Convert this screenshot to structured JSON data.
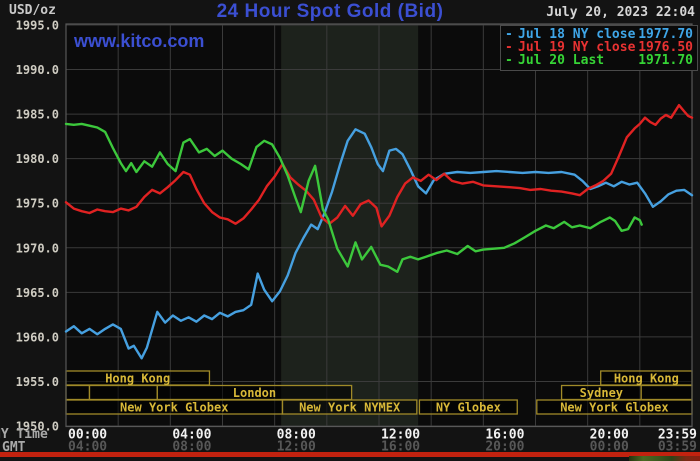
{
  "header": {
    "units_label": "USD/oz",
    "title": "24 Hour Spot Gold (Bid)",
    "watermark": "www.kitco.com",
    "timestamp": "July 20, 2023 22:04"
  },
  "legend": {
    "items": [
      {
        "marker": "-",
        "label": "Jul 18 NY close",
        "value": "1977.70",
        "color": "#3fa6e8"
      },
      {
        "marker": "-",
        "label": "Jul 19 NY close",
        "value": "1976.50",
        "color": "#e83232"
      },
      {
        "marker": "-",
        "label": "Jul 20 Last",
        "value": "1971.70",
        "color": "#36d436"
      }
    ]
  },
  "axis_headers": {
    "x_row1": "NY Time",
    "x_row2": "GMT"
  },
  "colors": {
    "plot_bg": "#0b0b0b",
    "outer_bg": "#131313",
    "grid": "#3b3b3b",
    "border": "#585858",
    "nymex_band": "#1d221c",
    "y_tick_text": "#cfccc2",
    "x_tick_text": "#f2f2f2",
    "gmt_tick_text": "#575757",
    "session_border": "#a08a28",
    "session_text": "#d8b838",
    "title_blue": "#3b4fd2",
    "bottom_strip": "#c2220f"
  },
  "chart_data": {
    "type": "line",
    "title": "24 Hour Spot Gold (Bid)",
    "ylabel": "USD/oz",
    "ylim": [
      1950,
      1995
    ],
    "xlim_hours": [
      0,
      24
    ],
    "grid": {
      "x_step_hours": 2,
      "y_step": 5
    },
    "y_ticks": [
      "1995.0",
      "1990.0",
      "1985.0",
      "1980.0",
      "1975.0",
      "1970.0",
      "1965.0",
      "1960.0",
      "1955.0",
      "1950.0"
    ],
    "x_ticks": {
      "hours": [
        0,
        4,
        8,
        12,
        16,
        20,
        23.983
      ],
      "ny_time": [
        "00:00",
        "04:00",
        "08:00",
        "12:00",
        "16:00",
        "20:00",
        "23:59"
      ],
      "gmt": [
        "04:00",
        "08:00",
        "12:00",
        "16:00",
        "20:00",
        "00:00",
        "03:59"
      ]
    },
    "nymex_highlight_hours": [
      8.25,
      13.5
    ],
    "sessions": [
      {
        "row": 0,
        "start": 0,
        "end": 5.5,
        "label": "Hong Kong"
      },
      {
        "row": 0,
        "start": 20.5,
        "end": 24,
        "label": "Hong Kong"
      },
      {
        "row": 1,
        "start": 0,
        "end": 0.9,
        "label": ""
      },
      {
        "row": 1,
        "start": 0.9,
        "end": 3.5,
        "label": ""
      },
      {
        "row": 1,
        "start": 3.5,
        "end": 10.95,
        "label": "London"
      },
      {
        "row": 1,
        "start": 19.0,
        "end": 22.05,
        "label": "Sydney"
      },
      {
        "row": 1,
        "start": 22.05,
        "end": 24,
        "label": ""
      },
      {
        "row": 2,
        "start": 0,
        "end": 8.3,
        "label": "New York Globex"
      },
      {
        "row": 2,
        "start": 8.3,
        "end": 13.45,
        "label": "New York NYMEX"
      },
      {
        "row": 2,
        "start": 13.55,
        "end": 17.3,
        "label": "NY Globex"
      },
      {
        "row": 2,
        "start": 18.05,
        "end": 24,
        "label": "New York Globex"
      }
    ],
    "series": [
      {
        "name": "Jul 18 NY close",
        "close": 1977.7,
        "color": "#46a0e0",
        "points": [
          [
            0,
            1960.6
          ],
          [
            0.3,
            1961.2
          ],
          [
            0.6,
            1960.4
          ],
          [
            0.9,
            1960.9
          ],
          [
            1.2,
            1960.3
          ],
          [
            1.5,
            1960.9
          ],
          [
            1.8,
            1961.4
          ],
          [
            2.1,
            1960.9
          ],
          [
            2.4,
            1958.7
          ],
          [
            2.6,
            1959.0
          ],
          [
            2.9,
            1957.6
          ],
          [
            3.1,
            1958.8
          ],
          [
            3.5,
            1962.8
          ],
          [
            3.8,
            1961.6
          ],
          [
            4.1,
            1962.4
          ],
          [
            4.4,
            1961.8
          ],
          [
            4.7,
            1962.2
          ],
          [
            5,
            1961.7
          ],
          [
            5.3,
            1962.4
          ],
          [
            5.6,
            1962.0
          ],
          [
            5.9,
            1962.7
          ],
          [
            6.2,
            1962.3
          ],
          [
            6.5,
            1962.8
          ],
          [
            6.8,
            1963.0
          ],
          [
            7.1,
            1963.6
          ],
          [
            7.35,
            1967.1
          ],
          [
            7.6,
            1965.3
          ],
          [
            7.9,
            1964.0
          ],
          [
            8.2,
            1965.1
          ],
          [
            8.5,
            1966.9
          ],
          [
            8.8,
            1969.4
          ],
          [
            9.1,
            1971.1
          ],
          [
            9.4,
            1972.6
          ],
          [
            9.65,
            1972.1
          ],
          [
            9.9,
            1973.8
          ],
          [
            10.2,
            1976.3
          ],
          [
            10.5,
            1979.3
          ],
          [
            10.8,
            1982.0
          ],
          [
            11.1,
            1983.3
          ],
          [
            11.45,
            1982.8
          ],
          [
            11.7,
            1981.3
          ],
          [
            11.95,
            1979.4
          ],
          [
            12.15,
            1978.6
          ],
          [
            12.4,
            1980.9
          ],
          [
            12.65,
            1981.1
          ],
          [
            12.9,
            1980.5
          ],
          [
            13.2,
            1978.8
          ],
          [
            13.5,
            1976.9
          ],
          [
            13.8,
            1976.1
          ],
          [
            14.1,
            1977.6
          ],
          [
            14.5,
            1978.3
          ],
          [
            15,
            1978.5
          ],
          [
            15.5,
            1978.4
          ],
          [
            16,
            1978.5
          ],
          [
            16.5,
            1978.6
          ],
          [
            17,
            1978.5
          ],
          [
            17.5,
            1978.4
          ],
          [
            18,
            1978.5
          ],
          [
            18.5,
            1978.4
          ],
          [
            19,
            1978.5
          ],
          [
            19.5,
            1978.2
          ],
          [
            19.8,
            1977.5
          ],
          [
            20.1,
            1976.6
          ],
          [
            20.4,
            1976.9
          ],
          [
            20.7,
            1977.3
          ],
          [
            21,
            1976.9
          ],
          [
            21.3,
            1977.4
          ],
          [
            21.6,
            1977.1
          ],
          [
            21.9,
            1977.3
          ],
          [
            22.2,
            1976.1
          ],
          [
            22.5,
            1974.6
          ],
          [
            22.8,
            1975.2
          ],
          [
            23.1,
            1976.0
          ],
          [
            23.4,
            1976.4
          ],
          [
            23.7,
            1976.5
          ],
          [
            24,
            1975.9
          ]
        ]
      },
      {
        "name": "Jul 19 NY close",
        "close": 1976.5,
        "color": "#e02222",
        "points": [
          [
            0,
            1975.1
          ],
          [
            0.3,
            1974.4
          ],
          [
            0.6,
            1974.1
          ],
          [
            0.9,
            1973.9
          ],
          [
            1.2,
            1974.3
          ],
          [
            1.5,
            1974.1
          ],
          [
            1.8,
            1974.0
          ],
          [
            2.1,
            1974.4
          ],
          [
            2.4,
            1974.2
          ],
          [
            2.7,
            1974.6
          ],
          [
            3,
            1975.7
          ],
          [
            3.3,
            1976.5
          ],
          [
            3.6,
            1976.1
          ],
          [
            3.9,
            1976.8
          ],
          [
            4.2,
            1977.6
          ],
          [
            4.5,
            1978.5
          ],
          [
            4.75,
            1978.2
          ],
          [
            5,
            1976.6
          ],
          [
            5.3,
            1975.0
          ],
          [
            5.6,
            1974.0
          ],
          [
            5.9,
            1973.4
          ],
          [
            6.2,
            1973.2
          ],
          [
            6.5,
            1972.7
          ],
          [
            6.8,
            1973.3
          ],
          [
            7.1,
            1974.3
          ],
          [
            7.4,
            1975.4
          ],
          [
            7.7,
            1976.9
          ],
          [
            8,
            1978.0
          ],
          [
            8.3,
            1979.4
          ],
          [
            8.6,
            1977.9
          ],
          [
            8.9,
            1977.1
          ],
          [
            9.2,
            1976.4
          ],
          [
            9.5,
            1975.4
          ],
          [
            9.8,
            1973.4
          ],
          [
            10.1,
            1972.7
          ],
          [
            10.4,
            1973.4
          ],
          [
            10.7,
            1974.7
          ],
          [
            11,
            1973.6
          ],
          [
            11.3,
            1974.9
          ],
          [
            11.6,
            1975.3
          ],
          [
            11.9,
            1974.5
          ],
          [
            12.1,
            1972.4
          ],
          [
            12.4,
            1973.6
          ],
          [
            12.7,
            1975.7
          ],
          [
            13,
            1977.2
          ],
          [
            13.3,
            1977.9
          ],
          [
            13.6,
            1977.5
          ],
          [
            13.9,
            1978.2
          ],
          [
            14.2,
            1977.6
          ],
          [
            14.5,
            1978.3
          ],
          [
            14.8,
            1977.5
          ],
          [
            15.2,
            1977.2
          ],
          [
            15.6,
            1977.4
          ],
          [
            16,
            1977.0
          ],
          [
            16.5,
            1976.9
          ],
          [
            17,
            1976.8
          ],
          [
            17.4,
            1976.7
          ],
          [
            17.8,
            1976.5
          ],
          [
            18.2,
            1976.6
          ],
          [
            18.6,
            1976.4
          ],
          [
            19,
            1976.3
          ],
          [
            19.4,
            1976.1
          ],
          [
            19.7,
            1975.9
          ],
          [
            20,
            1976.6
          ],
          [
            20.3,
            1977.0
          ],
          [
            20.6,
            1977.5
          ],
          [
            20.9,
            1978.3
          ],
          [
            21.2,
            1980.3
          ],
          [
            21.5,
            1982.4
          ],
          [
            21.8,
            1983.4
          ],
          [
            22,
            1983.9
          ],
          [
            22.2,
            1984.6
          ],
          [
            22.4,
            1984.1
          ],
          [
            22.6,
            1983.8
          ],
          [
            22.8,
            1984.5
          ],
          [
            23,
            1984.9
          ],
          [
            23.2,
            1984.6
          ],
          [
            23.5,
            1986.0
          ],
          [
            23.7,
            1985.3
          ],
          [
            23.85,
            1984.8
          ],
          [
            24,
            1984.6
          ]
        ]
      },
      {
        "name": "Jul 20 Last",
        "close": 1971.7,
        "color": "#3cc83c",
        "points": [
          [
            0,
            1983.9
          ],
          [
            0.3,
            1983.8
          ],
          [
            0.6,
            1983.9
          ],
          [
            0.9,
            1983.7
          ],
          [
            1.2,
            1983.5
          ],
          [
            1.5,
            1983.0
          ],
          [
            1.8,
            1981.2
          ],
          [
            2.1,
            1979.5
          ],
          [
            2.3,
            1978.6
          ],
          [
            2.5,
            1979.5
          ],
          [
            2.7,
            1978.5
          ],
          [
            3,
            1979.7
          ],
          [
            3.3,
            1979.1
          ],
          [
            3.6,
            1980.7
          ],
          [
            3.9,
            1979.4
          ],
          [
            4.2,
            1978.6
          ],
          [
            4.5,
            1981.8
          ],
          [
            4.75,
            1982.2
          ],
          [
            5.1,
            1980.7
          ],
          [
            5.4,
            1981.1
          ],
          [
            5.7,
            1980.3
          ],
          [
            6,
            1980.9
          ],
          [
            6.35,
            1980.0
          ],
          [
            6.7,
            1979.4
          ],
          [
            7,
            1978.8
          ],
          [
            7.3,
            1981.3
          ],
          [
            7.6,
            1982.0
          ],
          [
            7.9,
            1981.6
          ],
          [
            8.2,
            1980.1
          ],
          [
            8.5,
            1978.1
          ],
          [
            8.8,
            1975.6
          ],
          [
            9,
            1974.0
          ],
          [
            9.3,
            1977.5
          ],
          [
            9.55,
            1979.2
          ],
          [
            9.85,
            1974.3
          ],
          [
            10.05,
            1973.2
          ],
          [
            10.4,
            1969.9
          ],
          [
            10.8,
            1967.9
          ],
          [
            11.1,
            1970.6
          ],
          [
            11.35,
            1968.7
          ],
          [
            11.7,
            1970.1
          ],
          [
            12.05,
            1968.1
          ],
          [
            12.35,
            1967.9
          ],
          [
            12.7,
            1967.3
          ],
          [
            12.9,
            1968.7
          ],
          [
            13.2,
            1969.0
          ],
          [
            13.5,
            1968.7
          ],
          [
            13.8,
            1969.0
          ],
          [
            14.2,
            1969.4
          ],
          [
            14.6,
            1969.7
          ],
          [
            15,
            1969.3
          ],
          [
            15.4,
            1970.2
          ],
          [
            15.7,
            1969.6
          ],
          [
            16,
            1969.8
          ],
          [
            16.4,
            1969.9
          ],
          [
            16.8,
            1970.0
          ],
          [
            17.2,
            1970.5
          ],
          [
            17.6,
            1971.2
          ],
          [
            18,
            1971.9
          ],
          [
            18.4,
            1972.5
          ],
          [
            18.7,
            1972.2
          ],
          [
            19.1,
            1972.9
          ],
          [
            19.4,
            1972.3
          ],
          [
            19.7,
            1972.5
          ],
          [
            20.1,
            1972.2
          ],
          [
            20.5,
            1972.9
          ],
          [
            20.85,
            1973.4
          ],
          [
            21.05,
            1973.0
          ],
          [
            21.3,
            1971.9
          ],
          [
            21.55,
            1972.1
          ],
          [
            21.8,
            1973.4
          ],
          [
            22,
            1973.1
          ],
          [
            22.07,
            1972.6
          ]
        ]
      }
    ]
  }
}
